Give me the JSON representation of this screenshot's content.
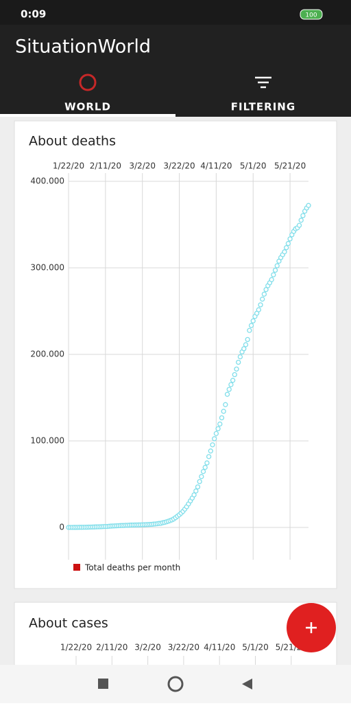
{
  "status_bar": {
    "time": "0:09",
    "battery": "100"
  },
  "app_bar": {
    "title": "SituationWorld"
  },
  "tabs": [
    "WORLD",
    "FILTERING"
  ],
  "chart_data": {
    "type": "scatter",
    "title": "About deaths",
    "x": [
      "1/22/20",
      "1/23/20",
      "1/24/20",
      "1/25/20",
      "1/26/20",
      "1/27/20",
      "1/28/20",
      "1/29/20",
      "1/30/20",
      "1/31/20",
      "2/1/20",
      "2/2/20",
      "2/3/20",
      "2/4/20",
      "2/5/20",
      "2/6/20",
      "2/7/20",
      "2/8/20",
      "2/9/20",
      "2/10/20",
      "2/11/20",
      "2/12/20",
      "2/13/20",
      "2/14/20",
      "2/15/20",
      "2/16/20",
      "2/17/20",
      "2/18/20",
      "2/19/20",
      "2/20/20",
      "2/21/20",
      "2/22/20",
      "2/23/20",
      "2/24/20",
      "2/25/20",
      "2/26/20",
      "2/27/20",
      "2/28/20",
      "2/29/20",
      "3/1/20",
      "3/2/20",
      "3/3/20",
      "3/4/20",
      "3/5/20",
      "3/6/20",
      "3/7/20",
      "3/8/20",
      "3/9/20",
      "3/10/20",
      "3/11/20",
      "3/12/20",
      "3/13/20",
      "3/14/20",
      "3/15/20",
      "3/16/20",
      "3/17/20",
      "3/18/20",
      "3/19/20",
      "3/20/20",
      "3/21/20",
      "3/22/20",
      "3/23/20",
      "3/24/20",
      "3/25/20",
      "3/26/20",
      "3/27/20",
      "3/28/20",
      "3/29/20",
      "3/30/20",
      "3/31/20",
      "4/1/20",
      "4/2/20",
      "4/3/20",
      "4/4/20",
      "4/5/20",
      "4/6/20",
      "4/7/20",
      "4/8/20",
      "4/9/20",
      "4/10/20",
      "4/11/20",
      "4/12/20",
      "4/13/20",
      "4/14/20",
      "4/15/20",
      "4/16/20",
      "4/17/20",
      "4/18/20",
      "4/19/20",
      "4/20/20",
      "4/21/20",
      "4/22/20",
      "4/23/20",
      "4/24/20",
      "4/25/20",
      "4/26/20",
      "4/27/20",
      "4/28/20",
      "4/29/20",
      "4/30/20",
      "5/1/20",
      "5/2/20",
      "5/3/20",
      "5/4/20",
      "5/5/20",
      "5/6/20",
      "5/7/20",
      "5/8/20",
      "5/9/20",
      "5/10/20",
      "5/11/20",
      "5/12/20",
      "5/13/20",
      "5/14/20",
      "5/15/20",
      "5/16/20",
      "5/17/20",
      "5/18/20",
      "5/19/20",
      "5/20/20",
      "5/21/20",
      "5/22/20",
      "5/23/20",
      "5/24/20",
      "5/25/20",
      "5/26/20",
      "5/27/20",
      "5/28/20",
      "5/29/20",
      "5/30/20",
      "5/31/20"
    ],
    "series": [
      {
        "name": "Total deaths per month",
        "color": "#cc1111",
        "marker_color": "#80deea",
        "values": [
          17,
          18,
          26,
          42,
          56,
          82,
          131,
          133,
          171,
          213,
          259,
          362,
          426,
          492,
          564,
          634,
          719,
          806,
          906,
          1013,
          1113,
          1118,
          1371,
          1523,
          1666,
          1770,
          1868,
          2007,
          2122,
          2247,
          2251,
          2458,
          2469,
          2629,
          2708,
          2770,
          2814,
          2872,
          2941,
          2996,
          3085,
          3160,
          3254,
          3348,
          3460,
          3558,
          3803,
          3996,
          4262,
          4615,
          4720,
          5404,
          5819,
          6440,
          7126,
          7905,
          8733,
          9867,
          11299,
          13011,
          14623,
          16497,
          18615,
          21181,
          23970,
          27198,
          30652,
          33925,
          37582,
          42107,
          46809,
          52983,
          58787,
          64606,
          69374,
          74565,
          81865,
          88338,
          95455,
          102525,
          108502,
          114090,
          119481,
          126681,
          134176,
          141919,
          153822,
          159510,
          165044,
          169986,
          176583,
          183027,
          190858,
          197159,
          202846,
          206544,
          211167,
          217153,
          227638,
          233388,
          238650,
          243808,
          247470,
          251537,
          257239,
          263831,
          269567,
          274898,
          279311,
          282709,
          286330,
          291942,
          297197,
          302418,
          307666,
          311781,
          315185,
          318481,
          323286,
          328115,
          333401,
          338160,
          342097,
          345059,
          346232,
          349095,
          354983,
          360308,
          365434,
          369126,
          372035
        ]
      }
    ],
    "xlim": [
      "1/22/20",
      "5/31/20"
    ],
    "xticks": [
      "1/22/20",
      "2/11/20",
      "3/2/20",
      "3/22/20",
      "4/11/20",
      "5/1/20",
      "5/21/20"
    ],
    "ylim": [
      -37300,
      409500
    ],
    "yticks": [
      0,
      {
        "value": 100000,
        "label": "100.000"
      },
      {
        "value": 200000,
        "label": "200.000"
      },
      {
        "value": 300000,
        "label": "300.000"
      },
      {
        "value": 400000,
        "label": "400.000"
      }
    ],
    "grid": true
  },
  "cases_card": {
    "title": "About cases",
    "xticks": [
      "1/22/20",
      "2/11/20",
      "3/2/20",
      "3/22/20",
      "4/11/20",
      "5/1/20",
      "5/21/20"
    ]
  }
}
